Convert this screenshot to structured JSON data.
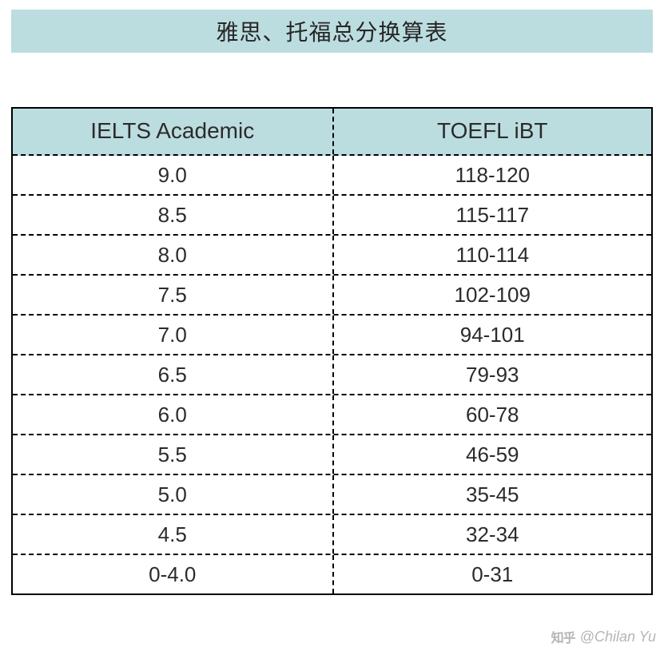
{
  "title": "雅思、托福总分换算表",
  "title_bar_bg": "#bcdde0",
  "header_bg": "#bcdde0",
  "table": {
    "columns": [
      "IELTS Academic",
      "TOEFL iBT"
    ],
    "rows": [
      [
        "9.0",
        "118-120"
      ],
      [
        "8.5",
        "115-117"
      ],
      [
        "8.0",
        "110-114"
      ],
      [
        "7.5",
        "102-109"
      ],
      [
        "7.0",
        "94-101"
      ],
      [
        "6.5",
        "79-93"
      ],
      [
        "6.0",
        "60-78"
      ],
      [
        "5.5",
        "46-59"
      ],
      [
        "5.0",
        "35-45"
      ],
      [
        "4.5",
        "32-34"
      ],
      [
        "0-4.0",
        "0-31"
      ]
    ]
  },
  "watermark": {
    "brand": "知乎",
    "author": "@Chilan Yu"
  }
}
